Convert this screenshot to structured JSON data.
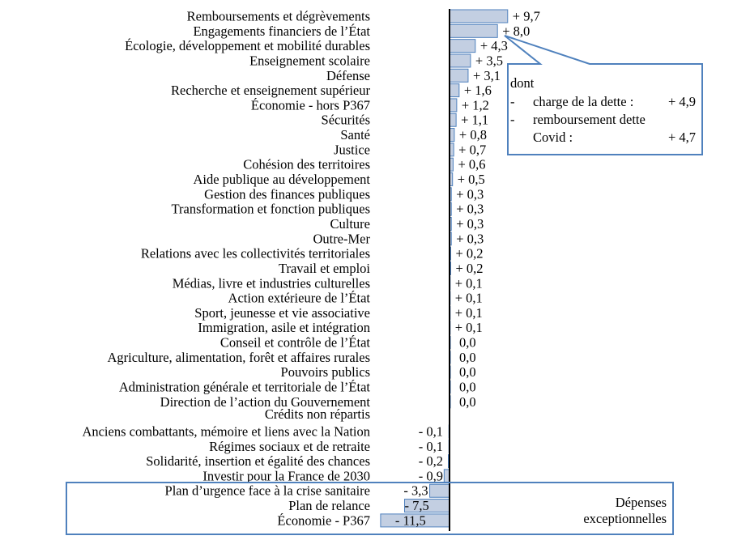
{
  "chart_data": {
    "type": "bar",
    "orientation": "horizontal",
    "title": "",
    "xlabel": "",
    "ylabel": "",
    "xlim": [
      -11.5,
      9.7
    ],
    "grid": false,
    "bar_color": "#c3cfe2",
    "bar_edge_color": "#4f81bd",
    "categories": [
      "Remboursements et dégrèvements",
      "Engagements financiers de l’État",
      "Écologie, développement et mobilité durables",
      "Enseignement scolaire",
      "Défense",
      "Recherche et enseignement supérieur",
      "Économie - hors P367",
      "Sécurités",
      "Santé",
      "Justice",
      "Cohésion des territoires",
      "Aide publique au développement",
      "Gestion des finances publiques",
      "Transformation et fonction publiques",
      "Culture",
      "Outre-Mer",
      "Relations avec les collectivités territoriales",
      "Travail et emploi",
      "Médias, livre et industries culturelles",
      "Action extérieure de l’État",
      "Sport, jeunesse et vie associative",
      "Immigration, asile et intégration",
      "Conseil et contrôle de l’État",
      "Agriculture, alimentation, forêt et affaires rurales",
      "Pouvoirs publics",
      "Administration générale et territoriale de l’État",
      "Direction de l’action du Gouvernement",
      "Crédits non répartis",
      "Anciens combattants, mémoire et liens avec la Nation",
      "Régimes sociaux et de retraite",
      "Solidarité, insertion et égalité des chances",
      "Investir pour la France de 2030",
      "Plan d’urgence face à la crise sanitaire",
      "Plan de relance",
      "Économie - P367"
    ],
    "values": [
      9.7,
      8.0,
      4.3,
      3.5,
      3.1,
      1.6,
      1.2,
      1.1,
      0.8,
      0.7,
      0.6,
      0.5,
      0.3,
      0.3,
      0.3,
      0.3,
      0.2,
      0.2,
      0.1,
      0.1,
      0.1,
      0.1,
      0.0,
      0.0,
      0.0,
      0.0,
      0.0,
      null,
      -0.1,
      -0.1,
      -0.2,
      -0.9,
      -3.3,
      -7.5,
      -11.5
    ],
    "value_labels": [
      "+ 9,7",
      "+ 8,0",
      "+ 4,3",
      "+ 3,5",
      "+ 3,1",
      "+ 1,6",
      "+ 1,2",
      "+ 1,1",
      "+ 0,8",
      "+ 0,7",
      "+ 0,6",
      "+ 0,5",
      "+ 0,3",
      "+ 0,3",
      "+ 0,3",
      "+ 0,3",
      "+ 0,2",
      "+ 0,2",
      "+ 0,1",
      "+ 0,1",
      "+ 0,1",
      "+ 0,1",
      "0,0",
      "0,0",
      "0,0",
      "0,0",
      "0,0",
      "",
      "- 0,1",
      "- 0,1",
      "- 0,2",
      "- 0,9",
      "- 3,3",
      "- 7,5",
      "- 11,5"
    ],
    "annotations": {
      "callout": {
        "target": "Engagements financiers de l’État",
        "line1": "dont",
        "items": [
          {
            "bullet": "-",
            "label": "charge de la dette :",
            "value": "+ 4,9"
          },
          {
            "bullet": "-",
            "label": "remboursement dette",
            "value": ""
          },
          {
            "bullet": "",
            "label": "Covid :",
            "value": "+ 4,7"
          }
        ]
      },
      "exceptional_box": {
        "line1": "Dépenses",
        "line2": "exceptionnelles",
        "covers": [
          "Plan d’urgence face à la crise sanitaire",
          "Plan de relance",
          "Économie - P367"
        ]
      },
      "box_color": "#4f81bd"
    }
  }
}
